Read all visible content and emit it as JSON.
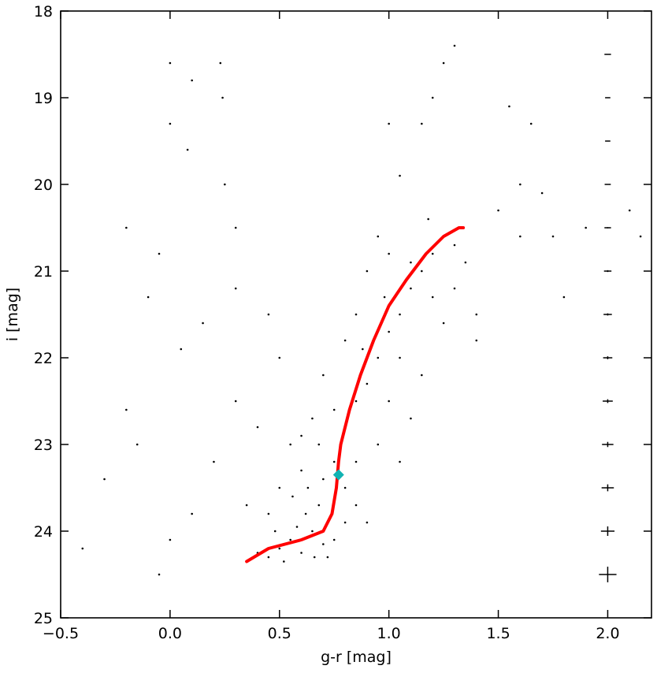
{
  "chart_data": {
    "type": "scatter",
    "xlabel": "g-r [mag]",
    "ylabel": "i [mag]",
    "xlim": [
      -0.5,
      2.2
    ],
    "ylim": [
      18,
      25
    ],
    "y_inverted": true,
    "xticks": [
      {
        "value": -0.5,
        "label": "−0.5"
      },
      {
        "value": 0,
        "label": "0.0"
      },
      0.5,
      {
        "value": 1,
        "label": "1.0"
      },
      1.5,
      {
        "value": 2,
        "label": "2.0"
      }
    ],
    "yticks": [
      18,
      19,
      20,
      21,
      22,
      23,
      24,
      25
    ],
    "series": [
      {
        "type": "scatter",
        "color": "#000000",
        "x": [
          0.5,
          0.55,
          0.6,
          0.65,
          0.7,
          0.58,
          0.62,
          0.68,
          0.72,
          0.45,
          0.4,
          0.52,
          0.75,
          0.8,
          0.66,
          0.48,
          0.56,
          0.63,
          0.7,
          0.75,
          0.8,
          0.85,
          0.9,
          0.6,
          0.68,
          0.8,
          0.85,
          0.9,
          0.75,
          0.95,
          1.0,
          0.88,
          1.05,
          1.1,
          0.98,
          1.15,
          1.2,
          1.25,
          1.3,
          1.1,
          1.2,
          1.05,
          1.0,
          0.95,
          0.85,
          1.15,
          1.25,
          1.3,
          0.7,
          0.65,
          0.6,
          0.9,
          0.85,
          0.8,
          1.35,
          1.4,
          1.0,
          1.18,
          0.95,
          0.55,
          0.5,
          0.45,
          1.05,
          1.1,
          -0.4,
          -0.3,
          -0.2,
          -0.1,
          0.0,
          0.1,
          0.23,
          0.24,
          -0.05,
          0.05,
          0.15,
          0.3,
          0.2,
          0.1,
          0.0,
          -0.15,
          0.3,
          0.25,
          0.0,
          0.08,
          0.35,
          0.4,
          -0.05,
          1.6,
          1.7,
          1.55,
          1.65,
          1.8,
          2.1,
          1.9,
          1.5,
          1.2,
          1.15,
          1.25,
          1.3,
          1.0,
          1.05,
          1.4,
          1.75,
          2.15,
          1.6,
          0.3,
          -0.2,
          0.45,
          0.5
        ],
        "y": [
          24.2,
          24.1,
          24.25,
          24.0,
          24.15,
          23.95,
          23.8,
          23.7,
          24.3,
          24.3,
          24.25,
          24.35,
          24.1,
          23.9,
          24.3,
          24.0,
          23.6,
          23.5,
          23.4,
          23.2,
          23.5,
          23.7,
          23.9,
          23.3,
          23.0,
          22.8,
          22.5,
          22.3,
          22.6,
          22.0,
          21.7,
          21.9,
          21.5,
          21.2,
          21.3,
          21.0,
          20.8,
          20.6,
          20.7,
          20.9,
          21.3,
          22.0,
          22.5,
          23.0,
          23.2,
          22.2,
          21.6,
          21.2,
          22.2,
          22.7,
          22.9,
          21.0,
          21.5,
          21.8,
          20.9,
          21.5,
          20.8,
          20.4,
          20.6,
          23.0,
          23.5,
          23.8,
          23.2,
          22.7,
          24.2,
          23.4,
          22.6,
          21.3,
          18.6,
          18.8,
          18.6,
          19.0,
          20.8,
          21.9,
          21.6,
          22.5,
          23.2,
          23.8,
          24.1,
          23.0,
          20.5,
          20.0,
          19.3,
          19.6,
          23.7,
          22.8,
          24.5,
          20.0,
          20.1,
          19.1,
          19.3,
          21.3,
          20.3,
          20.5,
          20.3,
          19.0,
          19.3,
          18.6,
          18.4,
          19.3,
          19.9,
          21.8,
          20.6,
          20.6,
          20.6,
          21.2,
          20.5,
          21.5,
          22.0
        ]
      },
      {
        "type": "line",
        "color": "#ff0000",
        "x": [
          0.35,
          0.45,
          0.6,
          0.7,
          0.74,
          0.76,
          0.77,
          0.78,
          0.82,
          0.87,
          0.93,
          1.0,
          1.08,
          1.17,
          1.25,
          1.32,
          1.34
        ],
        "y": [
          24.35,
          24.2,
          24.1,
          24.0,
          23.8,
          23.5,
          23.2,
          23.0,
          22.6,
          22.2,
          21.8,
          21.4,
          21.1,
          20.8,
          20.6,
          20.5,
          20.5
        ]
      },
      {
        "type": "marker",
        "color": "#11b3b3",
        "x": [
          0.77
        ],
        "y": [
          23.35
        ]
      }
    ],
    "errorbars": {
      "color": "#000000",
      "x": [
        2.0,
        2.0,
        2.0,
        2.0,
        2.0,
        2.0,
        2.0,
        2.0,
        2.0,
        2.0,
        2.0,
        2.0,
        2.0
      ],
      "y": [
        18.5,
        19.0,
        19.5,
        20.0,
        20.5,
        21.0,
        21.5,
        22.0,
        22.5,
        23.0,
        23.5,
        24.0,
        24.5
      ],
      "xerr": [
        0.015,
        0.012,
        0.012,
        0.014,
        0.015,
        0.017,
        0.019,
        0.021,
        0.023,
        0.026,
        0.028,
        0.031,
        0.04
      ],
      "yerr": [
        0.003,
        0.004,
        0.005,
        0.006,
        0.008,
        0.01,
        0.013,
        0.017,
        0.022,
        0.03,
        0.04,
        0.055,
        0.09
      ]
    }
  }
}
